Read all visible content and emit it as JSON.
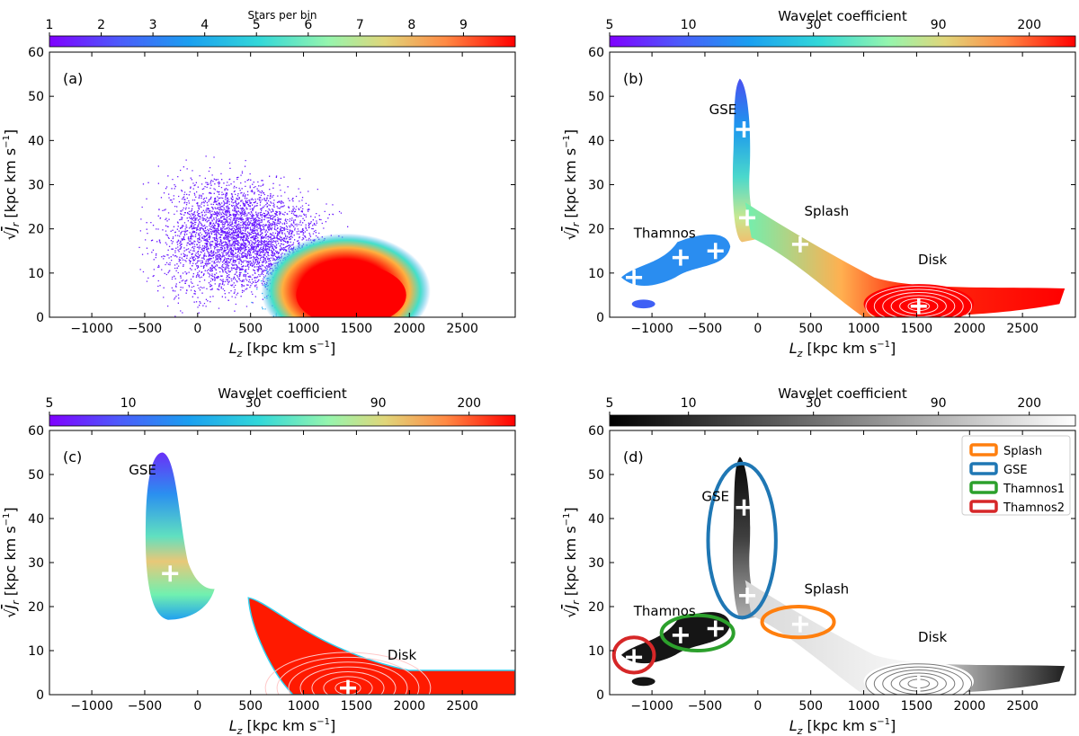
{
  "panels": [
    {
      "id": "a",
      "panel_label": "(a)",
      "colorbar": {
        "title": "Stars per bin",
        "ticks": [
          "1",
          "2",
          "3",
          "4",
          "5",
          "6",
          "7",
          "8",
          "9"
        ],
        "cmap": "rainbow"
      },
      "annotations": [],
      "legend": []
    },
    {
      "id": "b",
      "panel_label": "(b)",
      "colorbar": {
        "title": "Wavelet coefficient",
        "ticks": [
          "5",
          "10",
          "30",
          "90",
          "200"
        ],
        "cmap": "rainbow"
      },
      "annotations": [
        {
          "text": "GSE",
          "x": -330,
          "y": 46
        },
        {
          "text": "Splash",
          "x": 650,
          "y": 23
        },
        {
          "text": "Thamnos",
          "x": -880,
          "y": 18
        },
        {
          "text": "Disk",
          "x": 1650,
          "y": 12
        }
      ],
      "legend": []
    },
    {
      "id": "c",
      "panel_label": "(c)",
      "colorbar": {
        "title": "Wavelet coefficient",
        "ticks": [
          "5",
          "10",
          "30",
          "90",
          "200"
        ],
        "cmap": "rainbow"
      },
      "annotations": [
        {
          "text": "GSE",
          "x": -520,
          "y": 50
        },
        {
          "text": "Disk",
          "x": 1930,
          "y": 8
        }
      ],
      "legend": []
    },
    {
      "id": "d",
      "panel_label": "(d)",
      "colorbar": {
        "title": "Wavelet coefficient",
        "ticks": [
          "5",
          "10",
          "30",
          "90",
          "200"
        ],
        "cmap": "gray"
      },
      "annotations": [
        {
          "text": "GSE",
          "x": -400,
          "y": 44
        },
        {
          "text": "Splash",
          "x": 650,
          "y": 23
        },
        {
          "text": "Thamnos",
          "x": -880,
          "y": 18
        },
        {
          "text": "Disk",
          "x": 1650,
          "y": 12
        }
      ],
      "legend": [
        {
          "label": "Splash",
          "color": "#ff7f0e"
        },
        {
          "label": "GSE",
          "color": "#1f77b4"
        },
        {
          "label": "Thamnos1",
          "color": "#2ca02c"
        },
        {
          "label": "Thamnos2",
          "color": "#d62728"
        }
      ]
    }
  ],
  "chart_data": [
    {
      "type": "heatmap",
      "panel": "a",
      "xlabel": "L_z [kpc km s^-1]",
      "ylabel": "sqrt(J_r) [kpc km s^-1]",
      "xlim": [
        -1400,
        3000
      ],
      "ylim": [
        0,
        60
      ],
      "xticks": [
        -1000,
        -500,
        0,
        500,
        1000,
        1500,
        2000,
        2500
      ],
      "yticks": [
        0,
        10,
        20,
        30,
        40,
        50,
        60
      ],
      "colorbar_range": [
        1,
        10
      ],
      "regions": [
        {
          "name": "halo",
          "center": [
            400,
            18
          ],
          "spread": [
            700,
            12
          ],
          "level": 1.5
        },
        {
          "name": "disk",
          "center": [
            1400,
            6
          ],
          "spread": [
            420,
            5
          ],
          "level": 10
        }
      ]
    },
    {
      "type": "heatmap",
      "panel": "b",
      "xlabel": "L_z [kpc km s^-1]",
      "ylabel": "sqrt(J_r) [kpc km s^-1]",
      "xlim": [
        -1400,
        3000
      ],
      "ylim": [
        0,
        60
      ],
      "xticks": [
        -1000,
        -500,
        0,
        500,
        1000,
        1500,
        2000,
        2500
      ],
      "yticks": [
        0,
        10,
        20,
        30,
        40,
        50,
        60
      ],
      "colorbar_range": [
        5,
        300
      ],
      "markers": [
        [
          -1170,
          9
        ],
        [
          -730,
          13.5
        ],
        [
          -400,
          15
        ],
        [
          -130,
          42.5
        ],
        [
          -100,
          22.5
        ],
        [
          400,
          16.5
        ],
        [
          1520,
          2.5
        ]
      ]
    },
    {
      "type": "heatmap",
      "panel": "c",
      "xlabel": "L_z [kpc km s^-1]",
      "ylabel": "sqrt(J_r) [kpc km s^-1]",
      "xlim": [
        -1400,
        3000
      ],
      "ylim": [
        0,
        60
      ],
      "xticks": [
        -1000,
        -500,
        0,
        500,
        1000,
        1500,
        2000,
        2500
      ],
      "yticks": [
        0,
        10,
        20,
        30,
        40,
        50,
        60
      ],
      "colorbar_range": [
        5,
        300
      ],
      "markers": [
        [
          -260,
          27.5
        ],
        [
          1420,
          1.5
        ]
      ]
    },
    {
      "type": "heatmap",
      "panel": "d",
      "xlabel": "L_z [kpc km s^-1]",
      "ylabel": "sqrt(J_r) [kpc km s^-1]",
      "xlim": [
        -1400,
        3000
      ],
      "ylim": [
        0,
        60
      ],
      "xticks": [
        -1000,
        -500,
        0,
        500,
        1000,
        1500,
        2000,
        2500
      ],
      "yticks": [
        0,
        10,
        20,
        30,
        40,
        50,
        60
      ],
      "colorbar_range": [
        5,
        300
      ],
      "markers": [
        [
          -1170,
          8.5
        ],
        [
          -730,
          13.5
        ],
        [
          -400,
          15
        ],
        [
          -130,
          42.5
        ],
        [
          -100,
          22.5
        ],
        [
          400,
          16
        ],
        [
          1520,
          2.5
        ]
      ],
      "ellipses": [
        {
          "label": "Splash",
          "center": [
            380,
            16.5
          ],
          "radii": [
            340,
            3.5
          ]
        },
        {
          "label": "GSE",
          "center": [
            -150,
            35
          ],
          "radii": [
            320,
            17.5
          ]
        },
        {
          "label": "Thamnos1",
          "center": [
            -570,
            14
          ],
          "radii": [
            340,
            4
          ]
        },
        {
          "label": "Thamnos2",
          "center": [
            -1170,
            9
          ],
          "radii": [
            190,
            4
          ]
        }
      ]
    }
  ]
}
